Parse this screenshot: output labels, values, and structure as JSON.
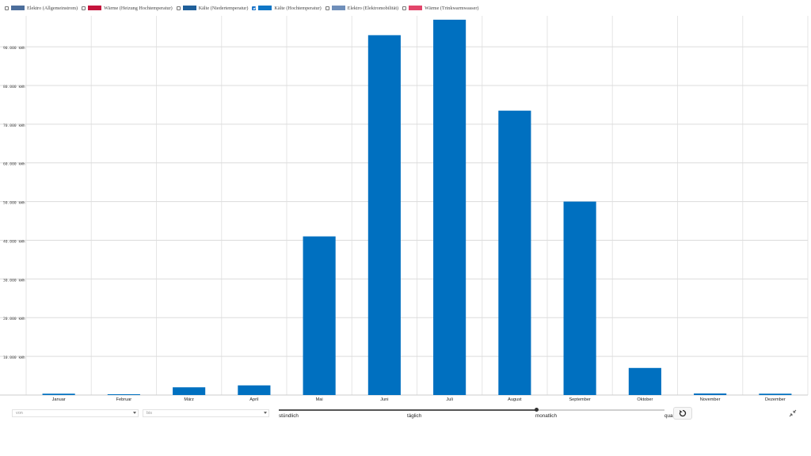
{
  "legend": [
    {
      "label": "Elektro (Allgemeinstrom)",
      "color": "#4c6e9c",
      "checked": false
    },
    {
      "label": "Wärme (Heizung Hochtemperatur)",
      "color": "#c4143c",
      "checked": false
    },
    {
      "label": "Kälte (Niedertemperatur)",
      "color": "#1f5f9a",
      "checked": false
    },
    {
      "label": "Kälte (Hochtemperatur)",
      "color": "#0f76c6",
      "checked": true
    },
    {
      "label": "Elektro (Elektromobilität)",
      "color": "#6f8fba",
      "checked": false
    },
    {
      "label": "Wärme (Trinkwarmwasser)",
      "color": "#e2456a",
      "checked": false
    }
  ],
  "chart_data": {
    "type": "bar",
    "categories": [
      "Januar",
      "Februar",
      "März",
      "April",
      "Mai",
      "Juni",
      "Juli",
      "August",
      "September",
      "Oktober",
      "November",
      "Dezember"
    ],
    "series": [
      {
        "name": "Kälte (Hochtemperatur)",
        "values": [
          350,
          150,
          2000,
          2500,
          41000,
          93000,
          97000,
          73500,
          50000,
          7000,
          400,
          350
        ]
      }
    ],
    "y_unit": "kWh",
    "yticks": [
      10000,
      20000,
      30000,
      40000,
      50000,
      60000,
      70000,
      80000,
      90000
    ],
    "ytick_labels": [
      "10.000 kWh",
      "20.000 kWh",
      "30.000 kWh",
      "40.000 kWh",
      "50.000 kWh",
      "60.000 kWh",
      "70.000 kWh",
      "80.000 kWh",
      "90.000 kWh"
    ],
    "ylim": [
      0,
      98000
    ],
    "bar_color": "#0070c0",
    "grid": true
  },
  "controls": {
    "from_placeholder": "von",
    "to_placeholder": "bis",
    "granularity_labels": [
      "stündlich",
      "täglich",
      "monatlich",
      "quar"
    ],
    "granularity_selected": "monatlich"
  }
}
